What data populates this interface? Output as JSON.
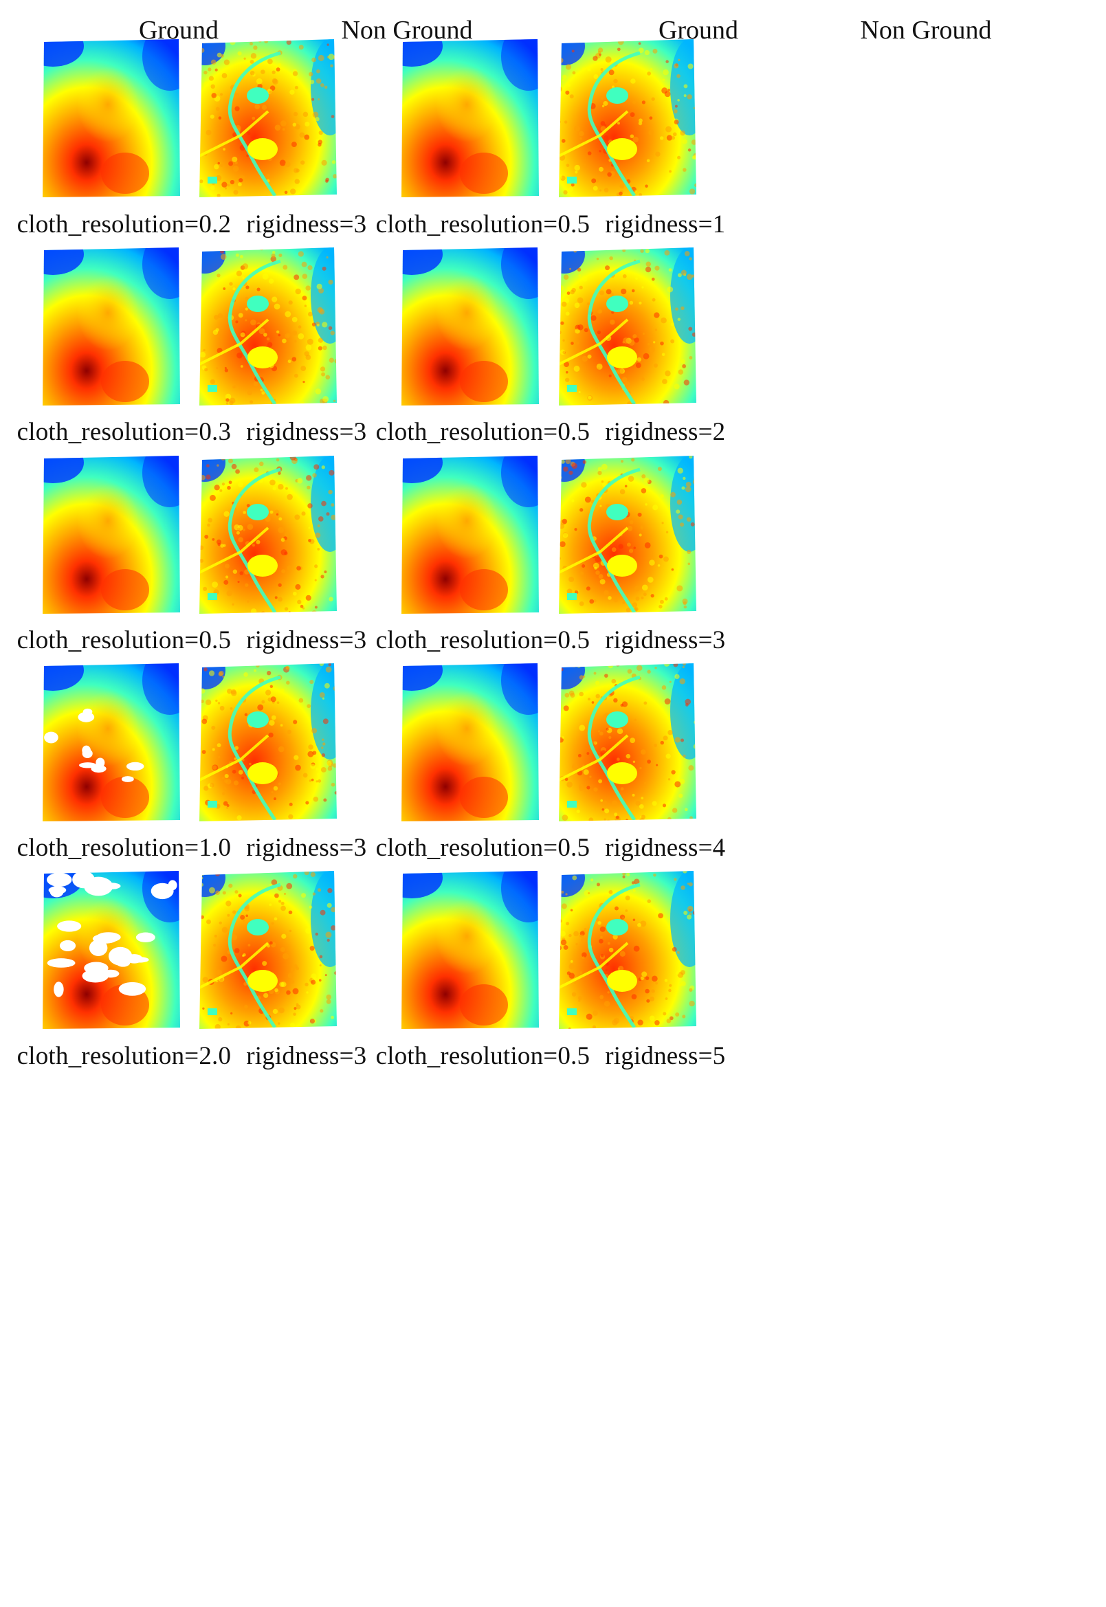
{
  "headers": {
    "left_ground": "Ground",
    "left_nonground": "Non Ground",
    "right_ground": "Ground",
    "right_nonground": "Non Ground"
  },
  "colormap": [
    "#00008f",
    "#0030ff",
    "#00b5ff",
    "#40ffbf",
    "#ffff00",
    "#ffa000",
    "#ff3000",
    "#8f0000"
  ],
  "left_column": [
    {
      "cloth_resolution": "cloth_resolution=0.2",
      "rigidness": "rigidness=3",
      "ground_holes": 0.0
    },
    {
      "cloth_resolution": "cloth_resolution=0.3",
      "rigidness": "rigidness=3",
      "ground_holes": 0.0
    },
    {
      "cloth_resolution": "cloth_resolution=0.5",
      "rigidness": "rigidness=3",
      "ground_holes": 0.0
    },
    {
      "cloth_resolution": "cloth_resolution=1.0",
      "rigidness": "rigidness=3",
      "ground_holes": 0.25
    },
    {
      "cloth_resolution": "cloth_resolution=2.0",
      "rigidness": "rigidness=3",
      "ground_holes": 0.6
    }
  ],
  "right_column": [
    {
      "cloth_resolution": "cloth_resolution=0.5",
      "rigidness": "rigidness=1",
      "ground_holes": 0.0
    },
    {
      "cloth_resolution": "cloth_resolution=0.5",
      "rigidness": "rigidness=2",
      "ground_holes": 0.0
    },
    {
      "cloth_resolution": "cloth_resolution=0.5",
      "rigidness": "rigidness=3",
      "ground_holes": 0.0
    },
    {
      "cloth_resolution": "cloth_resolution=0.5",
      "rigidness": "rigidness=4",
      "ground_holes": 0.0
    },
    {
      "cloth_resolution": "cloth_resolution=0.5",
      "rigidness": "rigidness=5",
      "ground_holes": 0.0
    }
  ]
}
